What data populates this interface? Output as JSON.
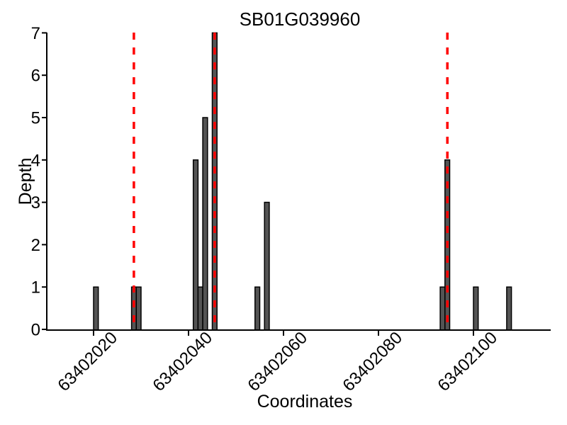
{
  "figure": {
    "title": "SB01G039960",
    "xlabel": "Coordinates",
    "ylabel": "Depth"
  },
  "chart_data": {
    "type": "bar",
    "title": "SB01G039960",
    "xlabel": "Coordinates",
    "ylabel": "Depth",
    "xlim": [
      63402010,
      63402116
    ],
    "ylim": [
      0,
      7
    ],
    "x_tick_values": [
      63402020,
      63402040,
      63402060,
      63402080,
      63402100
    ],
    "x_tick_labels": [
      "63402020",
      "63402040",
      "63402060",
      "63402080",
      "63402100"
    ],
    "y_tick_values": [
      0,
      1,
      2,
      3,
      4,
      5,
      6,
      7
    ],
    "y_tick_labels": [
      "0",
      "1",
      "2",
      "3",
      "4",
      "5",
      "6",
      "7"
    ],
    "grid": false,
    "legend": null,
    "bar_width_units": 1,
    "bars": [
      {
        "coordinate": 63402020,
        "depth": 1
      },
      {
        "coordinate": 63402028,
        "depth": 1
      },
      {
        "coordinate": 63402029,
        "depth": 1
      },
      {
        "coordinate": 63402041,
        "depth": 4
      },
      {
        "coordinate": 63402042,
        "depth": 1
      },
      {
        "coordinate": 63402043,
        "depth": 5
      },
      {
        "coordinate": 63402045,
        "depth": 7
      },
      {
        "coordinate": 63402054,
        "depth": 1
      },
      {
        "coordinate": 63402056,
        "depth": 3
      },
      {
        "coordinate": 63402093,
        "depth": 1
      },
      {
        "coordinate": 63402094,
        "depth": 4
      },
      {
        "coordinate": 63402100,
        "depth": 1
      },
      {
        "coordinate": 63402107,
        "depth": 1
      }
    ],
    "dashed_vlines_x": [
      63402028.5,
      63402045.5,
      63402094.5
    ],
    "colors": {
      "bar_fill": "#545454",
      "bar_stroke": "#000000",
      "dashed_line": "#ff0000",
      "axis": "#000000",
      "text": "#000000",
      "background": "#ffffff"
    }
  }
}
